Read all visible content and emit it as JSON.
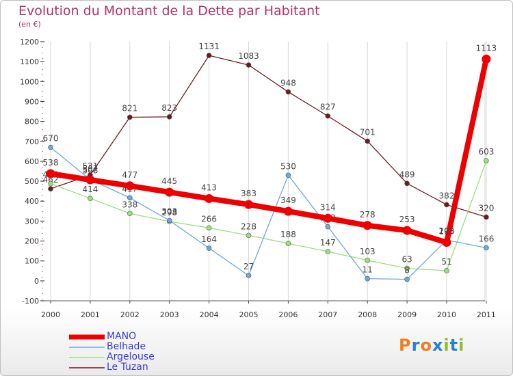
{
  "title": "Evolution du Montant de la Dette par Habitant",
  "subtitle": "(en €)",
  "logo": {
    "letters": [
      "P",
      "r",
      "o",
      "x",
      "i",
      "t",
      "i"
    ],
    "colors": [
      "#f07e1a",
      "#2a7fd4",
      "#f07e1a",
      "#2a7fd4",
      "#8cbf26",
      "#2a7fd4",
      "#8cbf26"
    ]
  },
  "chart_data": {
    "type": "line",
    "x": [
      "2000",
      "2001",
      "2002",
      "2003",
      "2004",
      "2005",
      "2006",
      "2007",
      "2008",
      "2009",
      "2010",
      "2011"
    ],
    "ylim": [
      -100,
      1200
    ],
    "yticks": [
      "-100",
      "0",
      "100",
      "200",
      "300",
      "400",
      "500",
      "600",
      "700",
      "800",
      "900",
      "1000",
      "1100",
      "1200"
    ],
    "grid": "vertical",
    "legend_position": "bottom-left",
    "series": [
      {
        "name": "Le Tuzan",
        "color": "#6b1a1f",
        "labels": true,
        "values": [
          462,
          531,
          821,
          823,
          1131,
          1083,
          948,
          827,
          701,
          489,
          382,
          320
        ],
        "value_labels": [
          "462",
          "531",
          "821",
          "823",
          "1131",
          "1083",
          "948",
          "827",
          "701",
          "489",
          "382",
          "320"
        ]
      },
      {
        "name": "Argelouse",
        "color": "#98e07a",
        "labels": true,
        "values": [
          488,
          414,
          338,
          298,
          266,
          228,
          188,
          147,
          103,
          63,
          51,
          603
        ],
        "value_labels": [
          "488",
          "414",
          "338",
          "298",
          "266",
          "228",
          "188",
          "147",
          "103",
          "63",
          "51",
          "603"
        ]
      },
      {
        "name": "Belhade",
        "color": "#6fa8dc",
        "labels": true,
        "values": [
          670,
          508,
          417,
          303,
          164,
          27,
          530,
          272,
          11,
          8,
          205,
          166
        ],
        "value_labels": [
          "670",
          "508",
          "417",
          "303",
          "164",
          "27",
          "530",
          "272",
          "11",
          "8",
          "205",
          "166"
        ]
      },
      {
        "name": "MANO",
        "color": "#ee0000",
        "labels": true,
        "values": [
          538,
          507,
          477,
          445,
          413,
          383,
          349,
          314,
          278,
          253,
          193,
          1113
        ],
        "value_labels": [
          "538",
          "507",
          "477",
          "445",
          "413",
          "383",
          "349",
          "314",
          "278",
          "253",
          "193",
          "1113"
        ]
      }
    ],
    "legend": [
      "MANO",
      "Belhade",
      "Argelouse",
      "Le Tuzan"
    ]
  }
}
